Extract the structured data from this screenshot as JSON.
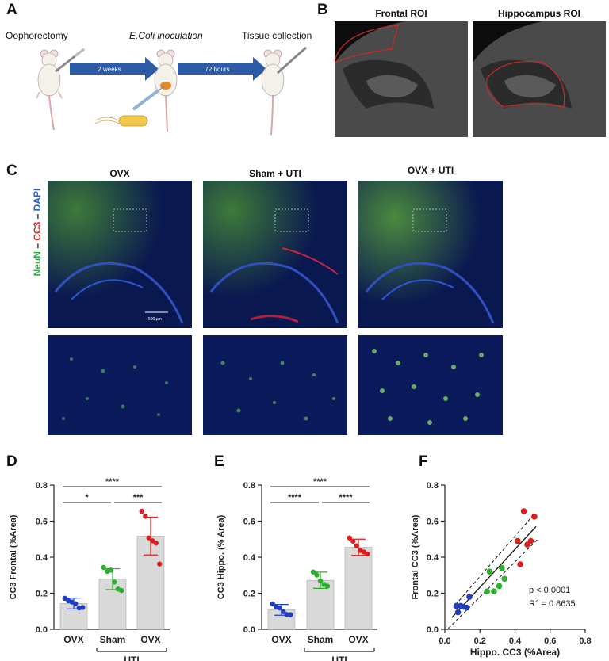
{
  "panel_labels": {
    "A": "A",
    "B": "B",
    "C": "C",
    "D": "D",
    "E": "E",
    "F": "F"
  },
  "panelA": {
    "steps": [
      {
        "label": "Oophorectomy"
      },
      {
        "label": "E.Coli inoculation"
      },
      {
        "label": "Tissue collection"
      }
    ],
    "arrows": [
      {
        "label": "2 weeks"
      },
      {
        "label": "72 hours"
      }
    ]
  },
  "panelB": {
    "rois": [
      {
        "label": "Frontal ROI"
      },
      {
        "label": "Hippocampus ROI"
      }
    ]
  },
  "panelC": {
    "conditions": [
      {
        "label": "OVX"
      },
      {
        "label": "Sham + UTI"
      },
      {
        "label": "OVX + UTI"
      }
    ],
    "stain_label": {
      "neun": "NeuN",
      "dash1": " – ",
      "cc3": "CC3",
      "dash2": " – ",
      "dapi": "DAPI"
    },
    "stain_colors": {
      "neun": "#2fb34a",
      "cc3": "#e0242a",
      "dapi": "#2a5fd6"
    },
    "scale_bar": "500 µm"
  },
  "chart_data": [
    {
      "panel": "D",
      "type": "bar",
      "categories": [
        "OVX",
        "Sham",
        "OVX"
      ],
      "group_label": "UTI",
      "ylabel": "CC3 Frontal (%Area)",
      "ylim": [
        0,
        0.8
      ],
      "yticks": [
        "0.0",
        "0.2",
        "0.4",
        "0.6",
        "0.8"
      ],
      "bar_color": "#d9d9d9",
      "point_colors": [
        "#1f3fbf",
        "#2bb02b",
        "#e01b1b"
      ],
      "means": [
        0.143,
        0.278,
        0.517
      ],
      "sd": [
        0.03,
        0.058,
        0.105
      ],
      "points": [
        [
          0.172,
          0.158,
          0.151,
          0.142,
          0.118,
          0.121
        ],
        [
          0.343,
          0.321,
          0.328,
          0.262,
          0.223,
          0.215
        ],
        [
          0.655,
          0.627,
          0.507,
          0.491,
          0.478,
          0.362
        ]
      ],
      "significance": [
        {
          "from": 0,
          "to": 2,
          "label": "****"
        },
        {
          "from": 0,
          "to": 1,
          "label": "*"
        },
        {
          "from": 1,
          "to": 2,
          "label": "***"
        }
      ]
    },
    {
      "panel": "E",
      "type": "bar",
      "categories": [
        "OVX",
        "Sham",
        "OVX"
      ],
      "group_label": "UTI",
      "ylabel": "CC3 Hippo. (% Area)",
      "ylim": [
        0,
        0.8
      ],
      "yticks": [
        "0.0",
        "0.2",
        "0.4",
        "0.6",
        "0.8"
      ],
      "bar_color": "#d9d9d9",
      "point_colors": [
        "#1f3fbf",
        "#2bb02b",
        "#e01b1b"
      ],
      "means": [
        0.108,
        0.272,
        0.455
      ],
      "sd": [
        0.03,
        0.045,
        0.045
      ],
      "points": [
        [
          0.141,
          0.126,
          0.118,
          0.098,
          0.082,
          0.081
        ],
        [
          0.318,
          0.301,
          0.268,
          0.249,
          0.239
        ],
        [
          0.507,
          0.489,
          0.463,
          0.437,
          0.429,
          0.418
        ]
      ],
      "significance": [
        {
          "from": 0,
          "to": 2,
          "label": "****"
        },
        {
          "from": 0,
          "to": 1,
          "label": "****"
        },
        {
          "from": 1,
          "to": 2,
          "label": "****"
        }
      ]
    },
    {
      "panel": "F",
      "type": "scatter",
      "xlabel": "Hippo. CC3 (%Area)",
      "ylabel": "Frontal CC3 (%Area)",
      "xlim": [
        0,
        0.8
      ],
      "ylim": [
        0,
        0.8
      ],
      "xticks": [
        "0.0",
        "0.2",
        "0.4",
        "0.6",
        "0.8"
      ],
      "yticks": [
        "0.0",
        "0.2",
        "0.4",
        "0.6",
        "0.8"
      ],
      "series": [
        {
          "color": "#1f3fbf",
          "points": [
            [
              0.065,
              0.13
            ],
            [
              0.075,
              0.094
            ],
            [
              0.09,
              0.13
            ],
            [
              0.105,
              0.125
            ],
            [
              0.125,
              0.12
            ],
            [
              0.14,
              0.18
            ]
          ]
        },
        {
          "color": "#2bb02b",
          "points": [
            [
              0.24,
              0.21
            ],
            [
              0.255,
              0.32
            ],
            [
              0.28,
              0.21
            ],
            [
              0.31,
              0.24
            ],
            [
              0.325,
              0.34
            ],
            [
              0.34,
              0.28
            ]
          ]
        },
        {
          "color": "#e01b1b",
          "points": [
            [
              0.415,
              0.49
            ],
            [
              0.43,
              0.36
            ],
            [
              0.45,
              0.655
            ],
            [
              0.47,
              0.47
            ],
            [
              0.49,
              0.49
            ],
            [
              0.51,
              0.625
            ]
          ]
        }
      ],
      "fit": {
        "x0": 0.04,
        "y0": 0.065,
        "x1": 0.52,
        "y1": 0.57
      },
      "annotations": {
        "p": "p < 0.0001",
        "r2_prefix": "R",
        "r2_sup": "2",
        "r2_value": " = 0.8635"
      }
    }
  ]
}
